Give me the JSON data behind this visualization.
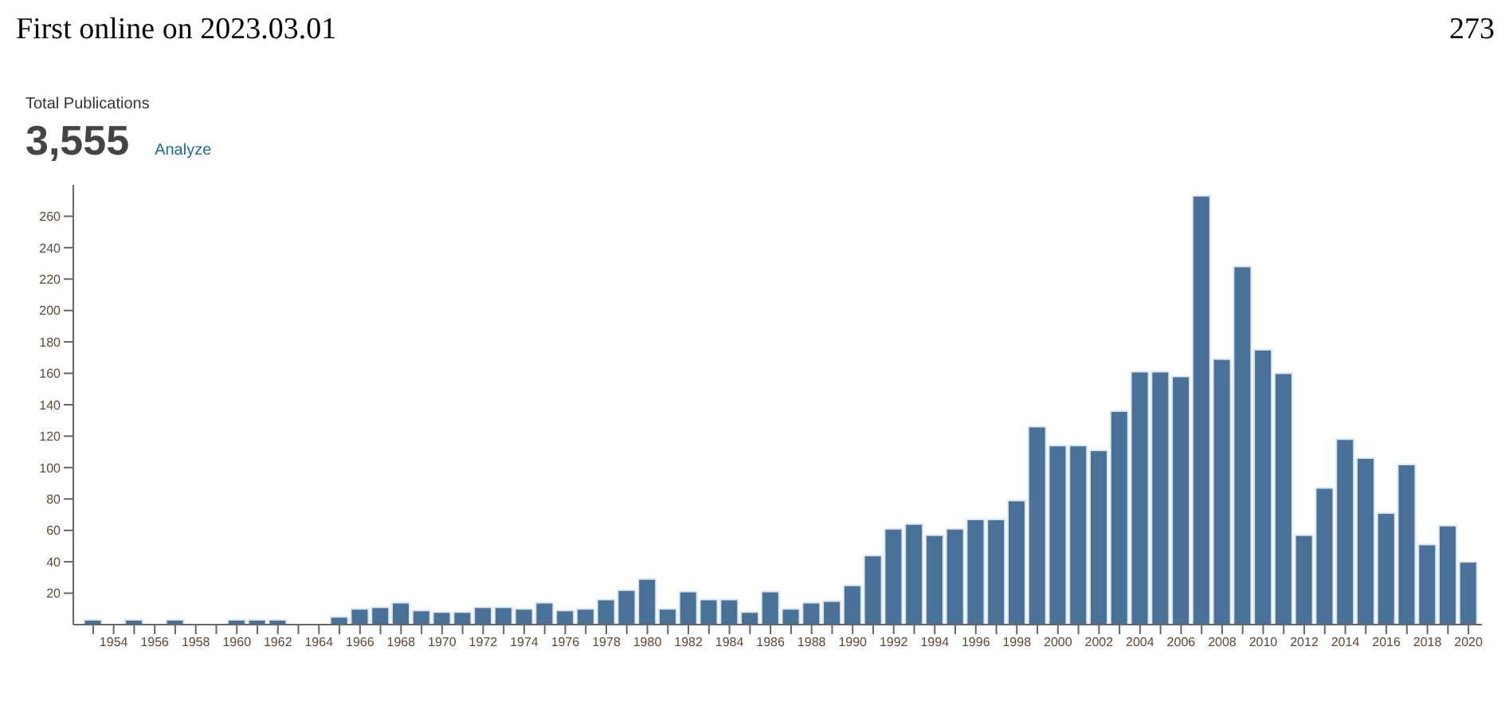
{
  "chart_data": {
    "type": "bar",
    "title": "Total Publications",
    "subtitle": "3,555",
    "annotations": [
      "First online on 2023.03.01",
      "273",
      "Analyze"
    ],
    "categories": [
      null,
      "1954",
      null,
      "1956",
      null,
      "1958",
      null,
      "1960",
      null,
      "1962",
      null,
      "1964",
      null,
      "1966",
      null,
      "1968",
      null,
      "1970",
      null,
      "1972",
      null,
      "1974",
      null,
      "1976",
      null,
      "1978",
      null,
      "1980",
      null,
      "1982",
      null,
      "1984",
      null,
      "1986",
      null,
      "1988",
      null,
      "1990",
      null,
      "1992",
      null,
      "1994",
      null,
      "1996",
      null,
      "1998",
      null,
      "2000",
      null,
      "2002",
      null,
      "2004",
      null,
      "2006",
      null,
      "2008",
      null,
      "2010",
      null,
      "2012",
      null,
      "2014",
      null,
      "2016",
      null,
      "2018",
      null,
      "2020"
    ],
    "values": [
      3,
      null,
      3,
      null,
      3,
      null,
      null,
      3,
      3,
      3,
      null,
      null,
      5,
      10,
      11,
      14,
      9,
      8,
      8,
      11,
      11,
      10,
      14,
      9,
      10,
      16,
      22,
      29,
      10,
      21,
      16,
      16,
      8,
      21,
      10,
      14,
      15,
      25,
      44,
      61,
      64,
      57,
      61,
      67,
      67,
      79,
      126,
      114,
      114,
      111,
      136,
      161,
      161,
      158,
      273,
      169,
      228,
      175,
      160,
      57,
      87,
      118,
      106,
      71,
      102,
      51,
      63,
      40
    ],
    "color": "#4a7298",
    "ylim": [
      0,
      280
    ],
    "yticks": [
      20,
      40,
      60,
      80,
      100,
      120,
      140,
      160,
      180,
      200,
      220,
      240,
      260
    ],
    "grid": false,
    "legend": false
  }
}
